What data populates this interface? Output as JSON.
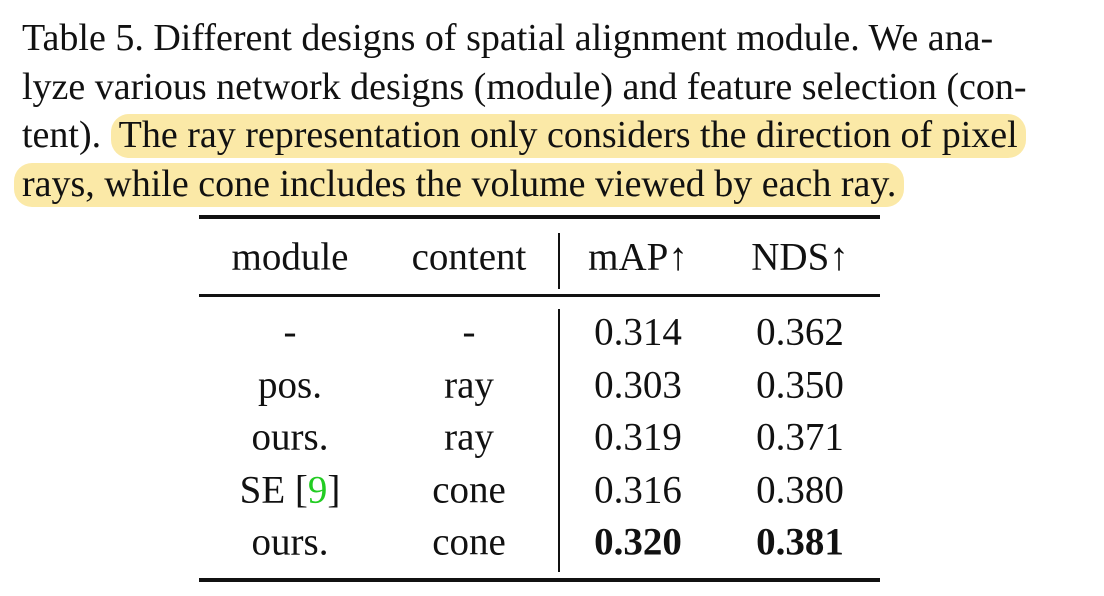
{
  "caption": {
    "line1": "Table 5. Different designs of spatial alignment module. We ana-",
    "line2": "lyze various network designs (module) and feature selection (con-",
    "line3_plain": "tent).",
    "line3_highlight": "The ray representation only considers the direction of pixel",
    "line4_highlight": "rays, while cone includes the volume viewed by each ray.",
    "highlight_color": "#fbe9a7"
  },
  "table": {
    "headers": [
      "module",
      "content",
      "mAP↑",
      "NDS↑"
    ],
    "rows": [
      {
        "module": "-",
        "content": "-",
        "map": "0.314",
        "nds": "0.362"
      },
      {
        "module": "pos.",
        "content": "ray",
        "map": "0.303",
        "nds": "0.350"
      },
      {
        "module": "ours.",
        "content": "ray",
        "map": "0.319",
        "nds": "0.371"
      },
      {
        "module_prefix": "SE [",
        "module_cite": "9",
        "module_suffix": "]",
        "content": "cone",
        "map": "0.316",
        "nds": "0.380"
      },
      {
        "module": "ours.",
        "content": "cone",
        "map": "0.320",
        "nds": "0.381",
        "bold": true
      }
    ],
    "citation_color": "#22cc22"
  }
}
